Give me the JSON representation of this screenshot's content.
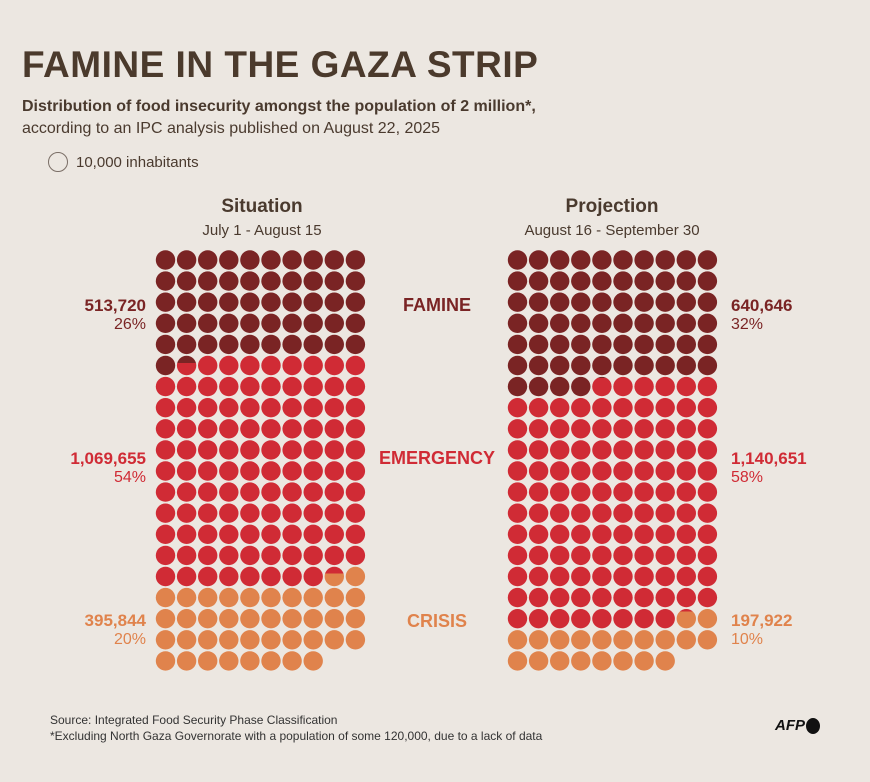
{
  "title": "FAMINE IN THE GAZA STRIP",
  "subtitle_bold": "Distribution of food insecurity amongst the population of 2 million*,",
  "subtitle": "according to an IPC analysis published on August 22, 2025",
  "legend": "10,000 inhabitants",
  "colors": {
    "famine": "#7a2424",
    "emergency": "#d02b35",
    "crisis": "#e0834c"
  },
  "labels": {
    "famine": "FAMINE",
    "emergency": "EMERGENCY",
    "crisis": "CRISIS"
  },
  "chart_data": {
    "type": "waffle",
    "unit": 10000,
    "columns": 10,
    "panels": [
      {
        "title": "Situation",
        "period": "July 1 - August 15",
        "values": {
          "famine": {
            "value": "513,720",
            "pct": "26%",
            "n": 513720
          },
          "emergency": {
            "value": "1,069,655",
            "pct": "54%",
            "n": 1069655
          },
          "crisis": {
            "value": "395,844",
            "pct": "20%",
            "n": 395844
          }
        }
      },
      {
        "title": "Projection",
        "period": "August 16 - September 30",
        "values": {
          "famine": {
            "value": "640,646",
            "pct": "32%",
            "n": 640646
          },
          "emergency": {
            "value": "1,140,651",
            "pct": "58%",
            "n": 1140651
          },
          "crisis": {
            "value": "197,922",
            "pct": "10%",
            "n": 197922
          }
        }
      }
    ]
  },
  "footer": {
    "source": "Source: Integrated Food Security Phase Classification",
    "note": "*Excluding North Gaza Governorate with a population of some 120,000, due to a lack of data",
    "logo": "AFP"
  }
}
